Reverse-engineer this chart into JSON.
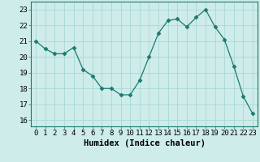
{
  "x": [
    0,
    1,
    2,
    3,
    4,
    5,
    6,
    7,
    8,
    9,
    10,
    11,
    12,
    13,
    14,
    15,
    16,
    17,
    18,
    19,
    20,
    21,
    22,
    23
  ],
  "y": [
    21.0,
    20.5,
    20.2,
    20.2,
    20.6,
    19.2,
    18.8,
    18.0,
    18.0,
    17.6,
    17.6,
    18.5,
    20.0,
    21.5,
    22.3,
    22.4,
    21.9,
    22.5,
    23.0,
    21.9,
    21.1,
    19.4,
    17.5,
    16.4
  ],
  "line_color": "#1a7a6e",
  "marker": "D",
  "marker_size": 2.5,
  "bg_color": "#ceecea",
  "grid_color": "#aad8d4",
  "xlabel": "Humidex (Indice chaleur)",
  "ylabel_ticks": [
    16,
    17,
    18,
    19,
    20,
    21,
    22,
    23
  ],
  "ylim": [
    15.6,
    23.5
  ],
  "xlim": [
    -0.5,
    23.5
  ],
  "xticks": [
    0,
    1,
    2,
    3,
    4,
    5,
    6,
    7,
    8,
    9,
    10,
    11,
    12,
    13,
    14,
    15,
    16,
    17,
    18,
    19,
    20,
    21,
    22,
    23
  ],
  "tick_fontsize": 6.5,
  "label_fontsize": 7.5
}
